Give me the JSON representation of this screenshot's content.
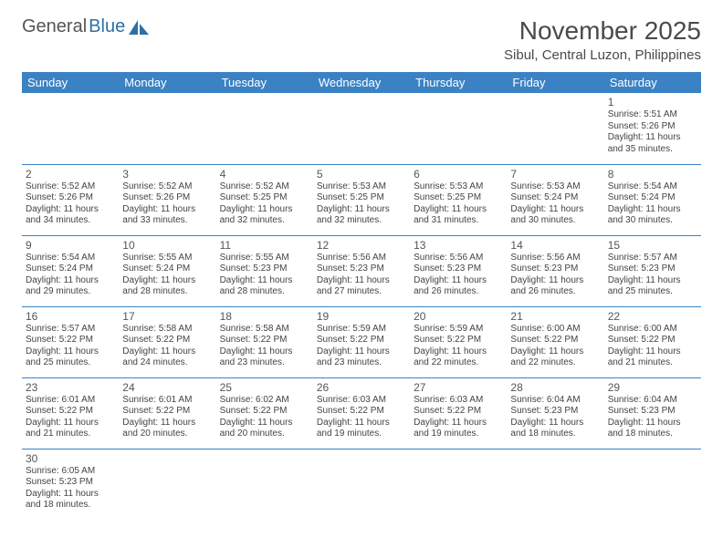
{
  "brand": {
    "part1": "General",
    "part2": "Blue"
  },
  "title": "November 2025",
  "location": "Sibul, Central Luzon, Philippines",
  "colors": {
    "header_bg": "#3b82c4",
    "header_text": "#ffffff",
    "rule": "#3b82c4",
    "text": "#444444",
    "title_text": "#4a4a4a"
  },
  "weekdays": [
    "Sunday",
    "Monday",
    "Tuesday",
    "Wednesday",
    "Thursday",
    "Friday",
    "Saturday"
  ],
  "weeks": [
    [
      null,
      null,
      null,
      null,
      null,
      null,
      {
        "d": "1",
        "sr": "5:51 AM",
        "ss": "5:26 PM",
        "dl": "11 hours and 35 minutes."
      }
    ],
    [
      {
        "d": "2",
        "sr": "5:52 AM",
        "ss": "5:26 PM",
        "dl": "11 hours and 34 minutes."
      },
      {
        "d": "3",
        "sr": "5:52 AM",
        "ss": "5:26 PM",
        "dl": "11 hours and 33 minutes."
      },
      {
        "d": "4",
        "sr": "5:52 AM",
        "ss": "5:25 PM",
        "dl": "11 hours and 32 minutes."
      },
      {
        "d": "5",
        "sr": "5:53 AM",
        "ss": "5:25 PM",
        "dl": "11 hours and 32 minutes."
      },
      {
        "d": "6",
        "sr": "5:53 AM",
        "ss": "5:25 PM",
        "dl": "11 hours and 31 minutes."
      },
      {
        "d": "7",
        "sr": "5:53 AM",
        "ss": "5:24 PM",
        "dl": "11 hours and 30 minutes."
      },
      {
        "d": "8",
        "sr": "5:54 AM",
        "ss": "5:24 PM",
        "dl": "11 hours and 30 minutes."
      }
    ],
    [
      {
        "d": "9",
        "sr": "5:54 AM",
        "ss": "5:24 PM",
        "dl": "11 hours and 29 minutes."
      },
      {
        "d": "10",
        "sr": "5:55 AM",
        "ss": "5:24 PM",
        "dl": "11 hours and 28 minutes."
      },
      {
        "d": "11",
        "sr": "5:55 AM",
        "ss": "5:23 PM",
        "dl": "11 hours and 28 minutes."
      },
      {
        "d": "12",
        "sr": "5:56 AM",
        "ss": "5:23 PM",
        "dl": "11 hours and 27 minutes."
      },
      {
        "d": "13",
        "sr": "5:56 AM",
        "ss": "5:23 PM",
        "dl": "11 hours and 26 minutes."
      },
      {
        "d": "14",
        "sr": "5:56 AM",
        "ss": "5:23 PM",
        "dl": "11 hours and 26 minutes."
      },
      {
        "d": "15",
        "sr": "5:57 AM",
        "ss": "5:23 PM",
        "dl": "11 hours and 25 minutes."
      }
    ],
    [
      {
        "d": "16",
        "sr": "5:57 AM",
        "ss": "5:22 PM",
        "dl": "11 hours and 25 minutes."
      },
      {
        "d": "17",
        "sr": "5:58 AM",
        "ss": "5:22 PM",
        "dl": "11 hours and 24 minutes."
      },
      {
        "d": "18",
        "sr": "5:58 AM",
        "ss": "5:22 PM",
        "dl": "11 hours and 23 minutes."
      },
      {
        "d": "19",
        "sr": "5:59 AM",
        "ss": "5:22 PM",
        "dl": "11 hours and 23 minutes."
      },
      {
        "d": "20",
        "sr": "5:59 AM",
        "ss": "5:22 PM",
        "dl": "11 hours and 22 minutes."
      },
      {
        "d": "21",
        "sr": "6:00 AM",
        "ss": "5:22 PM",
        "dl": "11 hours and 22 minutes."
      },
      {
        "d": "22",
        "sr": "6:00 AM",
        "ss": "5:22 PM",
        "dl": "11 hours and 21 minutes."
      }
    ],
    [
      {
        "d": "23",
        "sr": "6:01 AM",
        "ss": "5:22 PM",
        "dl": "11 hours and 21 minutes."
      },
      {
        "d": "24",
        "sr": "6:01 AM",
        "ss": "5:22 PM",
        "dl": "11 hours and 20 minutes."
      },
      {
        "d": "25",
        "sr": "6:02 AM",
        "ss": "5:22 PM",
        "dl": "11 hours and 20 minutes."
      },
      {
        "d": "26",
        "sr": "6:03 AM",
        "ss": "5:22 PM",
        "dl": "11 hours and 19 minutes."
      },
      {
        "d": "27",
        "sr": "6:03 AM",
        "ss": "5:22 PM",
        "dl": "11 hours and 19 minutes."
      },
      {
        "d": "28",
        "sr": "6:04 AM",
        "ss": "5:23 PM",
        "dl": "11 hours and 18 minutes."
      },
      {
        "d": "29",
        "sr": "6:04 AM",
        "ss": "5:23 PM",
        "dl": "11 hours and 18 minutes."
      }
    ],
    [
      {
        "d": "30",
        "sr": "6:05 AM",
        "ss": "5:23 PM",
        "dl": "11 hours and 18 minutes."
      },
      null,
      null,
      null,
      null,
      null,
      null
    ]
  ],
  "labels": {
    "sunrise": "Sunrise: ",
    "sunset": "Sunset: ",
    "daylight": "Daylight: "
  }
}
